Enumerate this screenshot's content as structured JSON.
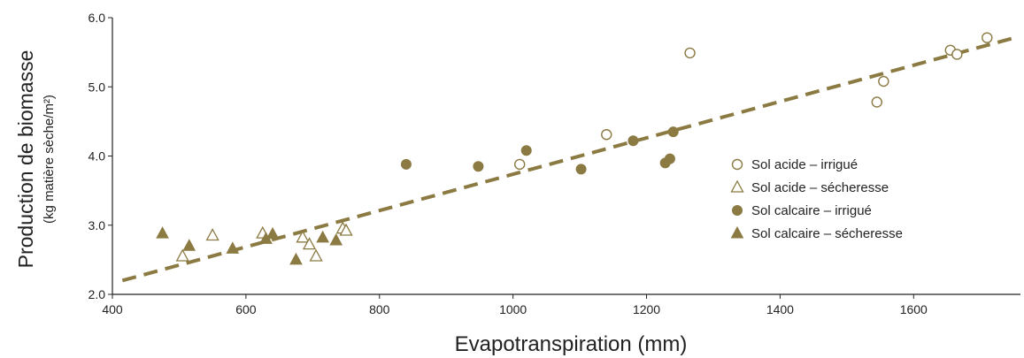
{
  "chart_data": {
    "type": "scatter",
    "title": "",
    "xlabel": "Evapotranspiration (mm)",
    "ylabel": "Production de biomasse",
    "ylabel_sub": "(kg matière sèche/m²)",
    "xlim": [
      400,
      1760
    ],
    "ylim": [
      2.0,
      6.0
    ],
    "xticks": [
      400,
      600,
      800,
      1000,
      1200,
      1400,
      1600
    ],
    "yticks": [
      "2.0",
      "3.0",
      "4.0",
      "5.0",
      "6.0"
    ],
    "grid": false,
    "legend_position": "right",
    "trendline": {
      "style": "dashed",
      "color": "#8b7a42",
      "x": [
        415,
        1755
      ],
      "y": [
        2.2,
        5.72
      ]
    },
    "series": [
      {
        "name": "Sol acide – irrigué",
        "marker": "circle-open",
        "color": "#8b7a42",
        "x": [
          1010,
          1140,
          1265,
          1545,
          1555,
          1655,
          1665,
          1710
        ],
        "y": [
          3.88,
          4.31,
          5.49,
          4.78,
          5.08,
          5.53,
          5.47,
          5.71
        ]
      },
      {
        "name": "Sol acide – sécheresse",
        "marker": "triangle-open",
        "color": "#8b7a42",
        "x": [
          505,
          550,
          625,
          685,
          695,
          705,
          745,
          750
        ],
        "y": [
          2.55,
          2.85,
          2.88,
          2.82,
          2.72,
          2.55,
          2.95,
          2.92
        ]
      },
      {
        "name": "Sol calcaire – irrigué",
        "marker": "circle-filled",
        "color": "#8b7a42",
        "x": [
          840,
          948,
          1020,
          1102,
          1180,
          1228,
          1235,
          1240
        ],
        "y": [
          3.88,
          3.85,
          4.08,
          3.81,
          4.22,
          3.9,
          3.96,
          4.35
        ]
      },
      {
        "name": "Sol calcaire – sécheresse",
        "marker": "triangle-filled",
        "color": "#8b7a42",
        "x": [
          475,
          515,
          580,
          630,
          640,
          675,
          715,
          735
        ],
        "y": [
          2.88,
          2.7,
          2.66,
          2.8,
          2.87,
          2.5,
          2.82,
          2.78
        ]
      }
    ]
  }
}
